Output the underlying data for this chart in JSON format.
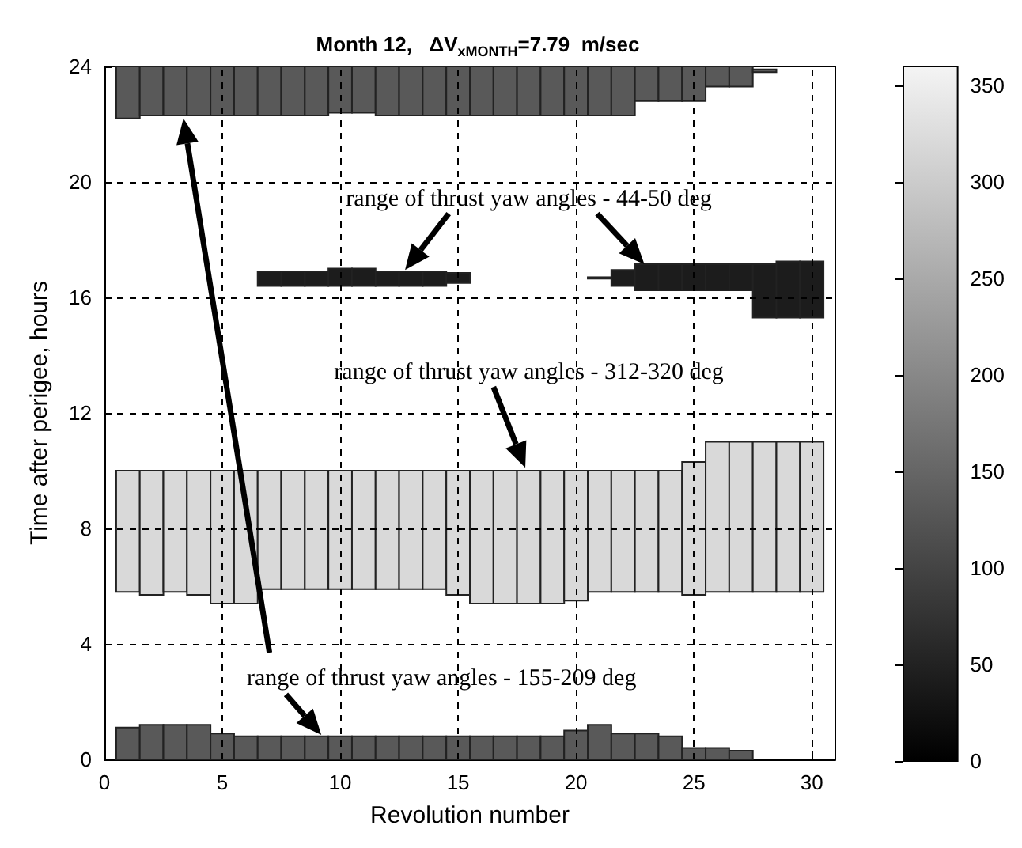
{
  "chart_data": {
    "type": "bar",
    "title": "Month 12,   ΔV$_{xMONTH}$=7.79  m/sec",
    "xlabel": "Revolution number",
    "ylabel": "Time after perigee, hours",
    "x": [
      1,
      2,
      3,
      4,
      5,
      6,
      7,
      8,
      9,
      10,
      11,
      12,
      13,
      14,
      15,
      16,
      17,
      18,
      19,
      20,
      21,
      22,
      23,
      24,
      25,
      26,
      27,
      28,
      29,
      30
    ],
    "xlim": [
      0,
      31
    ],
    "xticks": [
      0,
      5,
      10,
      15,
      20,
      25,
      30
    ],
    "ylim": [
      0,
      24
    ],
    "yticks": [
      0,
      4,
      8,
      12,
      16,
      20,
      24
    ],
    "grid": true,
    "clim": [
      0,
      360
    ],
    "cticks": [
      0,
      50,
      100,
      150,
      200,
      250,
      300,
      350
    ],
    "annotations": [
      "range of thrust yaw angles - 44-50 deg",
      "range of thrust yaw angles - 312-320 deg",
      "range of thrust yaw angles - 155-209 deg"
    ],
    "series": [
      {
        "color": "#595959",
        "base": [
          22.2,
          22.3,
          22.3,
          22.3,
          22.3,
          22.3,
          22.3,
          22.3,
          22.3,
          22.4,
          22.4,
          22.3,
          22.3,
          22.3,
          22.3,
          22.3,
          22.3,
          22.3,
          22.3,
          22.3,
          22.3,
          22.3,
          22.8,
          22.8,
          22.8,
          23.3,
          23.3,
          23.8,
          null,
          null
        ],
        "values": [
          1.8,
          1.7,
          1.7,
          1.7,
          1.7,
          1.7,
          1.7,
          1.7,
          1.7,
          1.6,
          1.6,
          1.7,
          1.7,
          1.7,
          1.7,
          1.7,
          1.7,
          1.7,
          1.7,
          1.7,
          1.7,
          1.7,
          1.2,
          1.2,
          1.2,
          0.7,
          0.7,
          0.1,
          null,
          null
        ]
      },
      {
        "color": "#1c1c1c",
        "base": [
          null,
          null,
          null,
          null,
          null,
          null,
          16.4,
          16.4,
          16.4,
          16.4,
          16.4,
          16.4,
          16.4,
          16.4,
          16.5,
          null,
          null,
          null,
          null,
          null,
          16.65,
          16.4,
          16.25,
          16.25,
          16.25,
          16.25,
          16.25,
          15.3,
          15.3,
          15.3
        ],
        "values": [
          null,
          null,
          null,
          null,
          null,
          null,
          0.5,
          0.5,
          0.5,
          0.6,
          0.6,
          0.5,
          0.5,
          0.5,
          0.35,
          null,
          null,
          null,
          null,
          null,
          0.05,
          0.55,
          0.9,
          0.9,
          0.9,
          0.9,
          0.9,
          1.85,
          1.95,
          1.95
        ]
      },
      {
        "color": "#d9d9d9",
        "base": [
          5.8,
          5.7,
          5.8,
          5.7,
          5.4,
          5.4,
          5.9,
          5.9,
          5.9,
          5.9,
          5.9,
          5.9,
          5.9,
          5.9,
          5.7,
          5.4,
          5.4,
          5.4,
          5.4,
          5.5,
          5.8,
          5.8,
          5.8,
          5.8,
          5.7,
          5.8,
          5.8,
          5.8,
          5.8,
          5.8
        ],
        "values": [
          4.2,
          4.3,
          4.2,
          4.3,
          4.6,
          4.6,
          4.1,
          4.1,
          4.1,
          4.1,
          4.1,
          4.1,
          4.1,
          4.1,
          4.3,
          4.6,
          4.6,
          4.6,
          4.6,
          4.5,
          4.2,
          4.2,
          4.2,
          4.2,
          4.6,
          5.2,
          5.2,
          5.2,
          5.2,
          5.2
        ]
      },
      {
        "color": "#595959",
        "values": [
          1.1,
          1.2,
          1.2,
          1.2,
          0.9,
          0.8,
          0.8,
          0.8,
          0.8,
          0.8,
          0.8,
          0.8,
          0.8,
          0.8,
          0.8,
          0.8,
          0.8,
          0.8,
          0.8,
          1.0,
          1.2,
          0.9,
          0.9,
          0.8,
          0.4,
          0.4,
          0.3,
          null,
          null,
          null
        ]
      }
    ]
  }
}
